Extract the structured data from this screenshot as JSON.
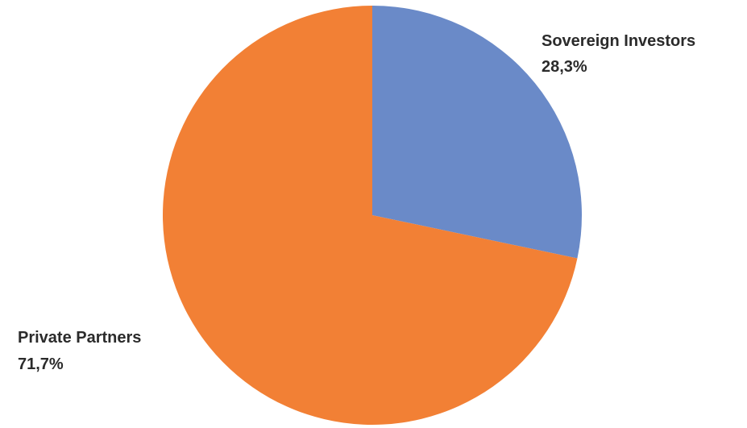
{
  "chart_data": {
    "type": "pie",
    "slices": [
      {
        "label": "Sovereign Investors",
        "value": 28.3,
        "value_label": "28,3%",
        "color": "#6a8ac8"
      },
      {
        "label": "Private Partners",
        "value": 71.7,
        "value_label": "71,7%",
        "color": "#f28035"
      }
    ],
    "start_angle_deg": 0,
    "direction": "clockwise",
    "legend": "none"
  }
}
